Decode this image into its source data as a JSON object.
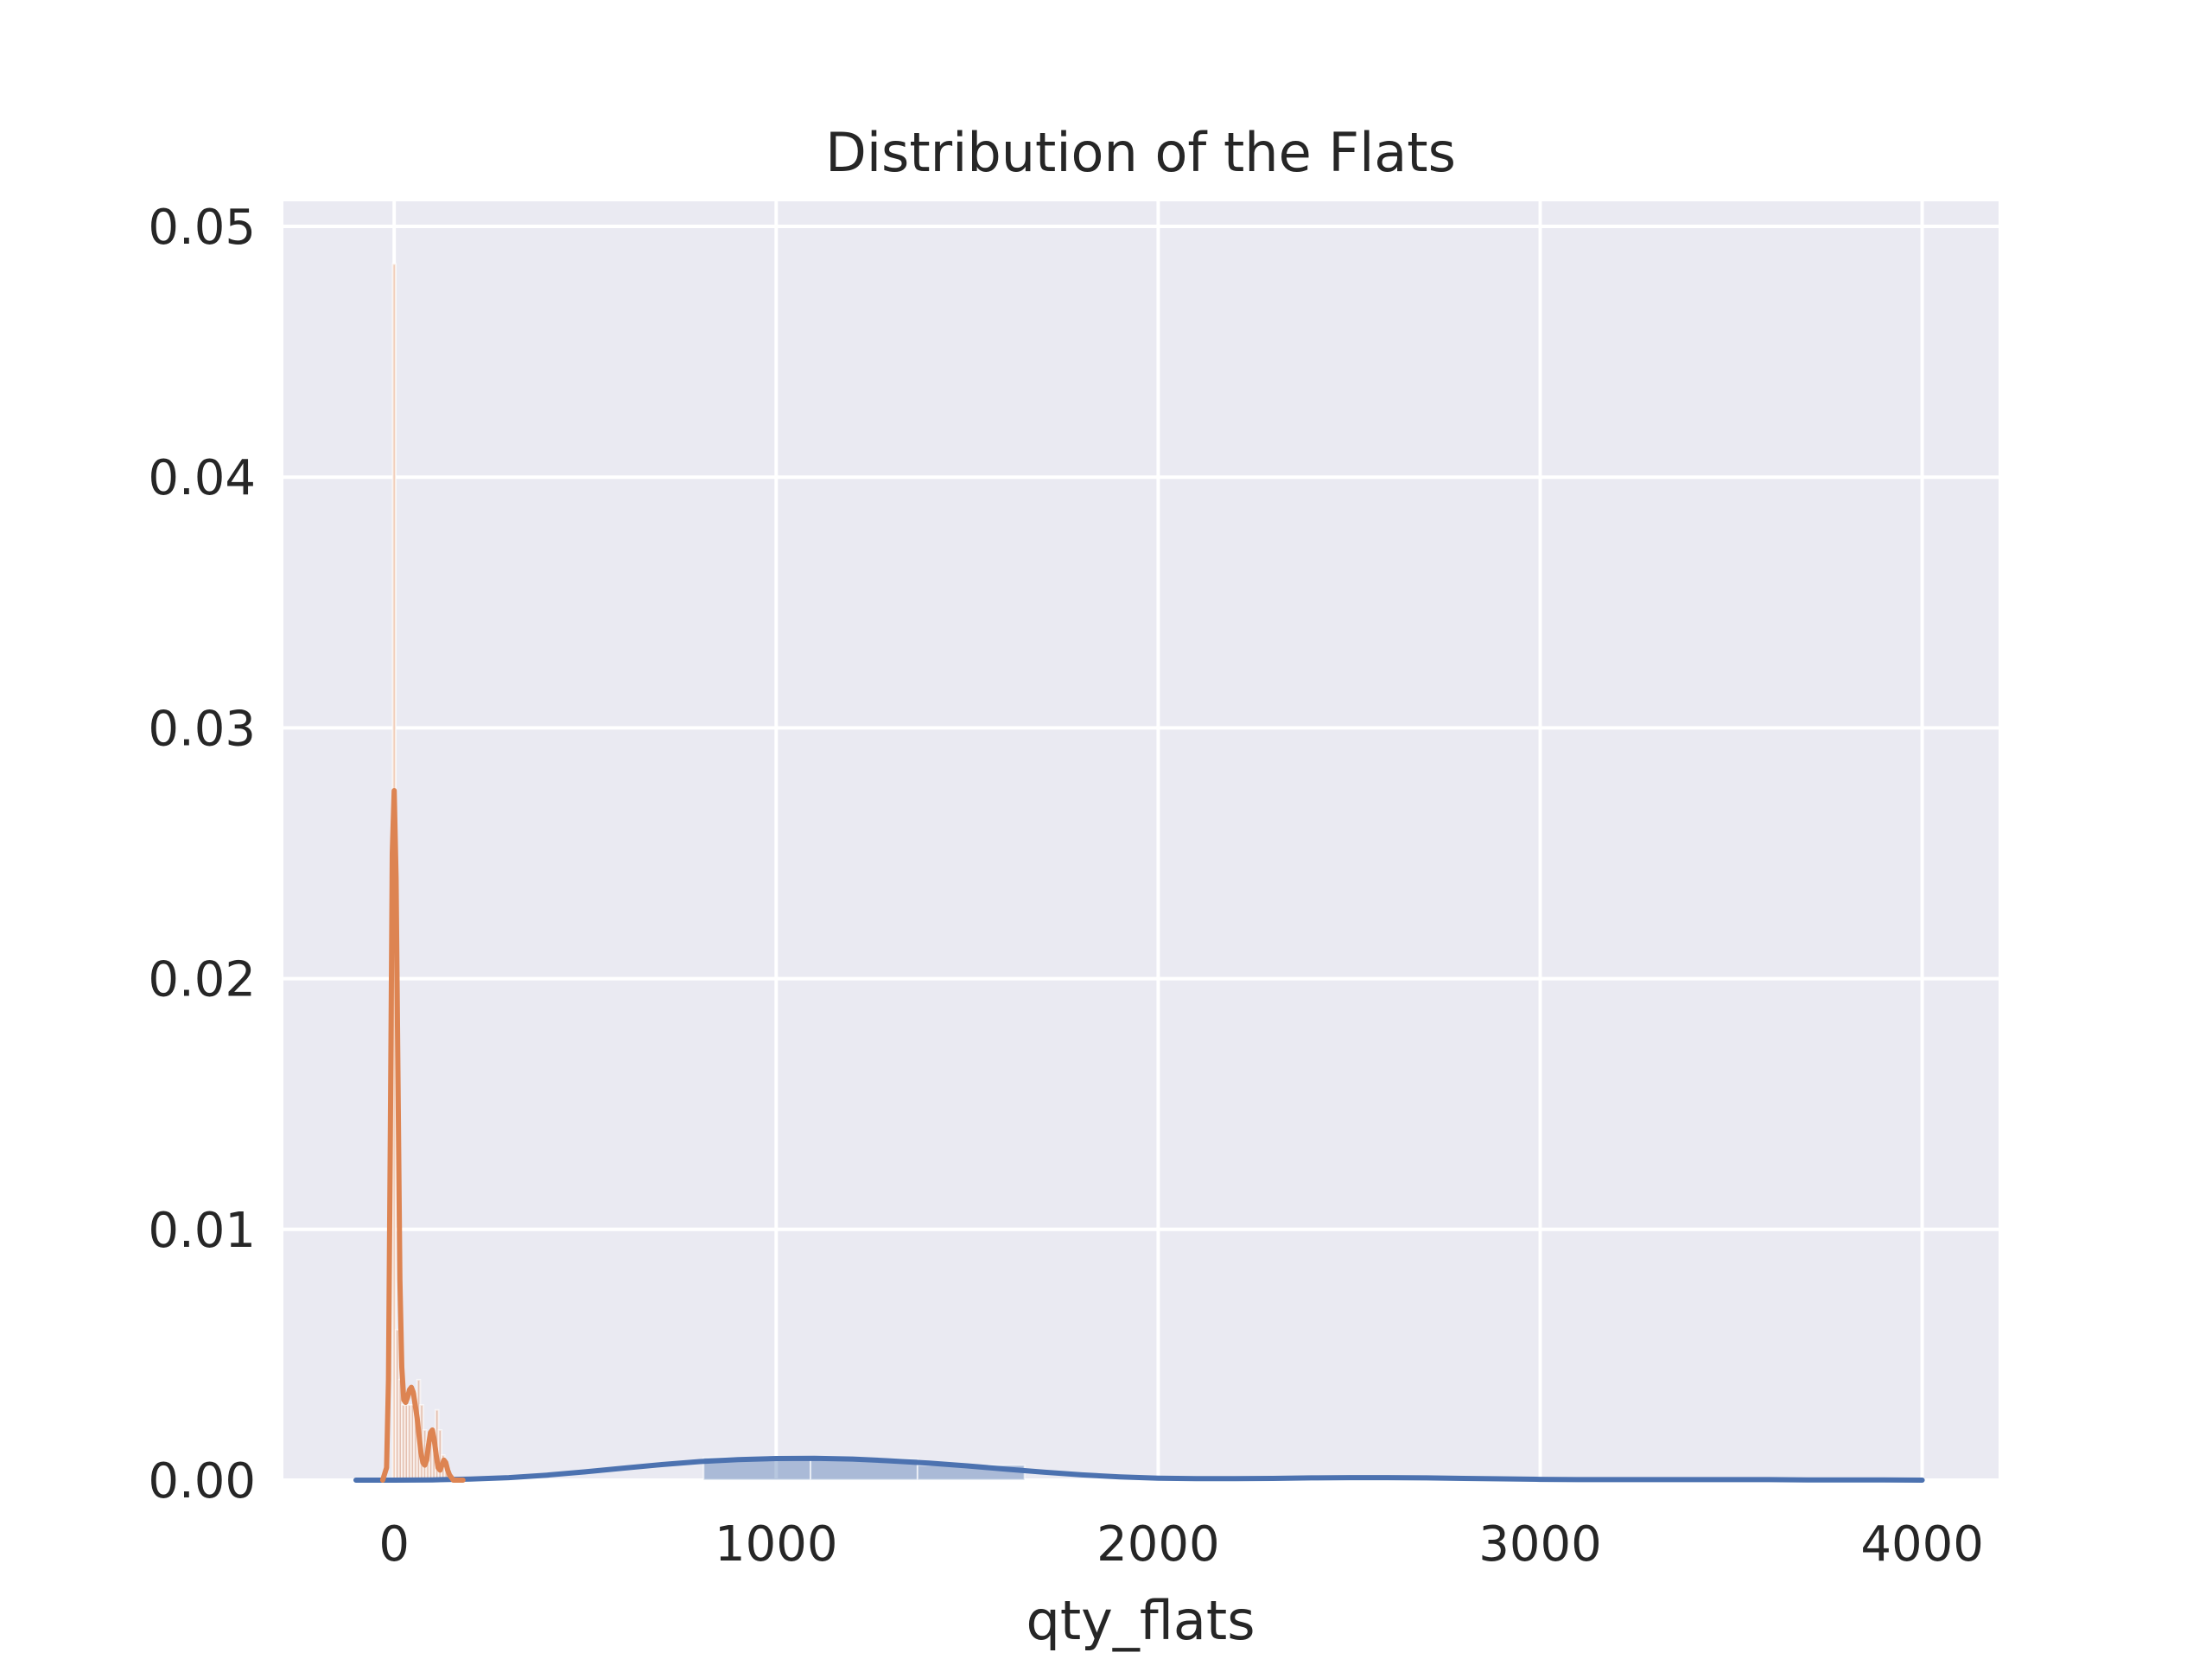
{
  "chart_data": {
    "type": "area",
    "title": "Distribution of the Flats",
    "xlabel": "qty_flats",
    "ylabel": "",
    "xlim": [
      -290,
      4200
    ],
    "ylim": [
      0,
      0.051
    ],
    "xticks": [
      0,
      1000,
      2000,
      3000,
      4000
    ],
    "xtick_labels": [
      "0",
      "1000",
      "2000",
      "3000",
      "4000"
    ],
    "yticks": [
      0.0,
      0.01,
      0.02,
      0.03,
      0.04,
      0.05
    ],
    "ytick_labels": [
      "0.00",
      "0.01",
      "0.02",
      "0.03",
      "0.04",
      "0.05"
    ],
    "grid": true,
    "colors": {
      "background": "#eaeaf2",
      "grid": "#ffffff",
      "blue": "#4c72b0",
      "orange": "#dd8452"
    },
    "histograms": [
      {
        "color": "#4c72b0",
        "bins": [
          {
            "x0": 810,
            "x1": 1090,
            "y": 0.0009
          },
          {
            "x0": 1090,
            "x1": 1370,
            "y": 0.00085
          },
          {
            "x0": 1370,
            "x1": 1650,
            "y": 0.0006
          }
        ]
      },
      {
        "color": "#dd8452",
        "bins": [
          {
            "x0": -4,
            "x1": 4,
            "y": 0.0485
          },
          {
            "x0": 4,
            "x1": 12,
            "y": 0.006
          },
          {
            "x0": 12,
            "x1": 20,
            "y": 0.004
          },
          {
            "x0": 20,
            "x1": 28,
            "y": 0.003
          },
          {
            "x0": 28,
            "x1": 36,
            "y": 0.003
          },
          {
            "x0": 36,
            "x1": 44,
            "y": 0.003
          },
          {
            "x0": 44,
            "x1": 52,
            "y": 0.003
          },
          {
            "x0": 52,
            "x1": 60,
            "y": 0.0035
          },
          {
            "x0": 60,
            "x1": 68,
            "y": 0.004
          },
          {
            "x0": 68,
            "x1": 76,
            "y": 0.003
          },
          {
            "x0": 76,
            "x1": 84,
            "y": 0.002
          },
          {
            "x0": 84,
            "x1": 92,
            "y": 0.0015
          },
          {
            "x0": 92,
            "x1": 100,
            "y": 0.0015
          },
          {
            "x0": 100,
            "x1": 108,
            "y": 0.002
          },
          {
            "x0": 108,
            "x1": 116,
            "y": 0.0028
          },
          {
            "x0": 116,
            "x1": 124,
            "y": 0.002
          },
          {
            "x0": 124,
            "x1": 132,
            "y": 0.001
          },
          {
            "x0": 132,
            "x1": 140,
            "y": 0.0005
          }
        ]
      }
    ],
    "series": [
      {
        "color": "#4c72b0",
        "x": [
          -100,
          0,
          100,
          200,
          300,
          400,
          500,
          600,
          700,
          800,
          900,
          1000,
          1100,
          1200,
          1300,
          1400,
          1500,
          1600,
          1700,
          1800,
          1900,
          2000,
          2100,
          2200,
          2300,
          2400,
          2500,
          2600,
          2700,
          2800,
          2900,
          3000,
          3100,
          3200,
          3300,
          3400,
          3500,
          3600,
          3700,
          3800,
          3900,
          4000
        ],
        "y": [
          0.0,
          0.0,
          1e-05,
          4e-05,
          0.0001,
          0.0002,
          0.00033,
          0.00048,
          0.00062,
          0.00074,
          0.00082,
          0.00086,
          0.00087,
          0.00084,
          0.00077,
          0.00068,
          0.00057,
          0.00044,
          0.00032,
          0.00021,
          0.00013,
          8e-05,
          6e-05,
          6e-05,
          7e-05,
          9e-05,
          0.0001,
          0.0001,
          9e-05,
          7e-05,
          5e-05,
          3e-05,
          2e-05,
          2e-05,
          2e-05,
          2e-05,
          2e-05,
          2e-05,
          1e-05,
          1e-05,
          1e-05,
          0.0
        ]
      },
      {
        "color": "#dd8452",
        "x": [
          -30,
          -20,
          -15,
          -10,
          -5,
          0,
          5,
          10,
          15,
          20,
          25,
          30,
          35,
          40,
          45,
          50,
          55,
          60,
          65,
          70,
          75,
          80,
          85,
          90,
          95,
          100,
          105,
          110,
          115,
          120,
          125,
          130,
          135,
          140,
          145,
          150,
          155,
          160,
          170,
          180
        ],
        "y": [
          0.0,
          0.0005,
          0.004,
          0.014,
          0.025,
          0.0275,
          0.024,
          0.016,
          0.008,
          0.0045,
          0.0032,
          0.0031,
          0.0033,
          0.0036,
          0.0037,
          0.0035,
          0.003,
          0.0025,
          0.0018,
          0.0011,
          0.0007,
          0.0006,
          0.0008,
          0.0014,
          0.0019,
          0.002,
          0.0016,
          0.001,
          0.0005,
          0.0004,
          0.0006,
          0.0008,
          0.0007,
          0.0004,
          0.0002,
          0.0001,
          0.0,
          0.0,
          0.0,
          0.0
        ]
      }
    ]
  }
}
